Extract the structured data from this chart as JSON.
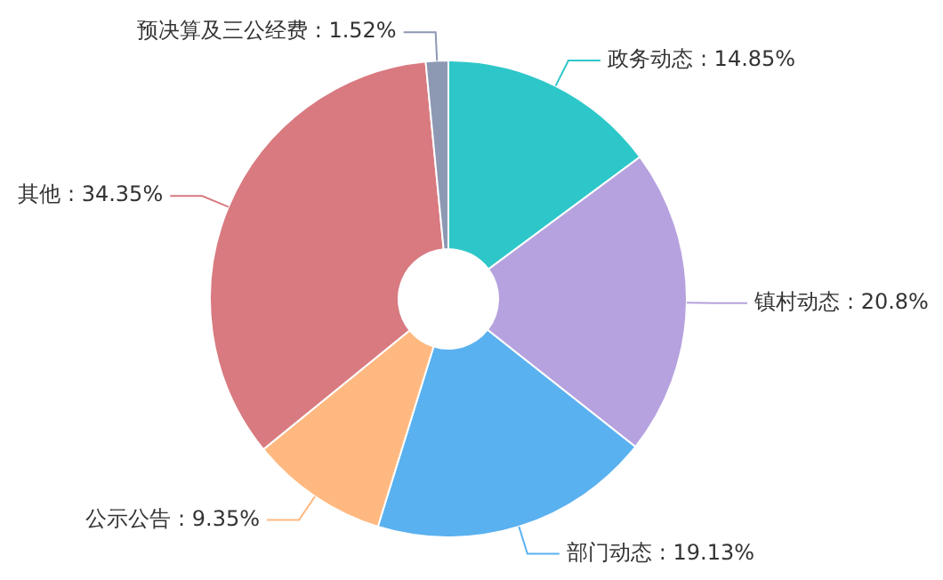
{
  "chart_data": {
    "type": "donut",
    "categories": [
      "政务动态",
      "镇村动态",
      "部门动态",
      "公示公告",
      "其他",
      "预决算及三公经费"
    ],
    "values": [
      14.85,
      20.8,
      19.13,
      9.35,
      34.35,
      1.52
    ],
    "colors": [
      "#2ec7c9",
      "#b6a2de",
      "#5ab1ef",
      "#ffb980",
      "#d87a80",
      "#8d98b3"
    ],
    "value_labels": [
      ": 14.85%",
      ": 20.8%",
      ": 19.13%",
      ": 9.35%",
      ": 34.35%",
      ": 1.52%"
    ]
  }
}
